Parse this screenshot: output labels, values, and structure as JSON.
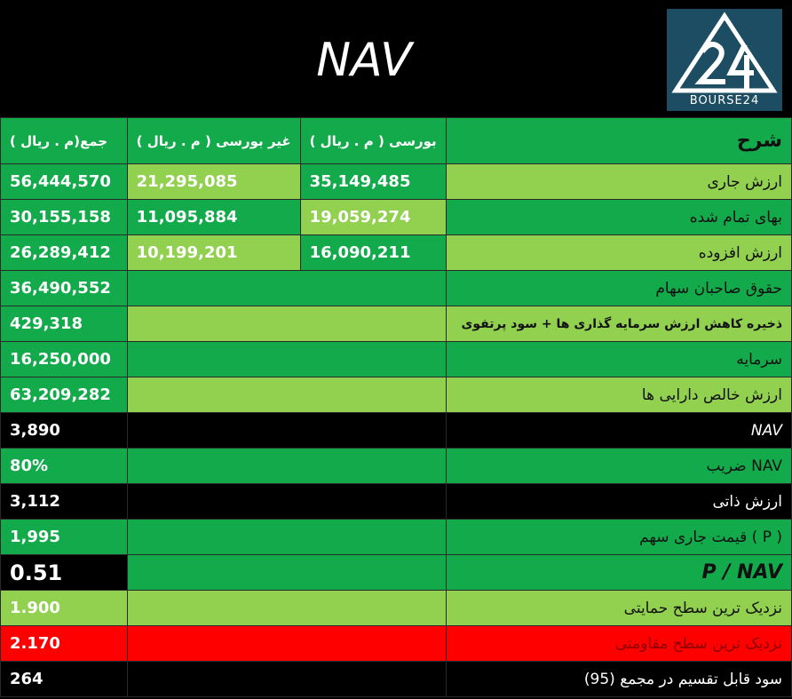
{
  "title": "NAV",
  "logo": {
    "text": "BOURSE24",
    "icon": "bourse24-logo-icon"
  },
  "table": {
    "headers": {
      "total": "( م . ریال)جمع",
      "non_bourse": "غیر بورسی ( م . ریال )",
      "bourse": "بورسی ( م . ریال )",
      "desc": "شرح"
    },
    "rows": [
      {
        "total": "56,444,570",
        "non_bourse": "21,295,085",
        "bourse": "35,149,485",
        "desc": "ارزش جاری"
      },
      {
        "total": "30,155,158",
        "non_bourse": "11,095,884",
        "bourse": "19,059,274",
        "desc": "بهای تمام شده"
      },
      {
        "total": "26,289,412",
        "non_bourse": "10,199,201",
        "bourse": "16,090,211",
        "desc": "ارزش افزوده"
      },
      {
        "total": "36,490,552",
        "desc": "حقوق صاحبان سهام"
      },
      {
        "total": "429,318",
        "desc": "ذخیره کاهش ارزش سرمایه گذاری ها + سود پرتفوی"
      },
      {
        "total": "16,250,000",
        "desc": "سرمایه"
      },
      {
        "total": "63,209,282",
        "desc": "ارزش خالص دارایی ها"
      },
      {
        "total": "3,890",
        "desc": "NAV"
      },
      {
        "total": "80%",
        "desc": "NAV ضریب"
      },
      {
        "total": "3,112",
        "desc": "ارزش ذاتی"
      },
      {
        "total": "1,995",
        "desc": "( P ) قیمت جاری سهم"
      },
      {
        "total": "0.51",
        "desc": "P / NAV"
      },
      {
        "total": "1.900",
        "desc": "نزدیک ترین سطح حمایتی"
      },
      {
        "total": "2.170",
        "desc": "نزدیک ترین سطح مقاومتی"
      },
      {
        "total": "264",
        "desc": "سود قابل تقسیم در مجمع (95)"
      }
    ]
  },
  "colors": {
    "green": "#12aa4b",
    "light_green": "#92d050",
    "black": "#000000",
    "red": "#ff0000",
    "logo_bg": "#1c4d62"
  }
}
